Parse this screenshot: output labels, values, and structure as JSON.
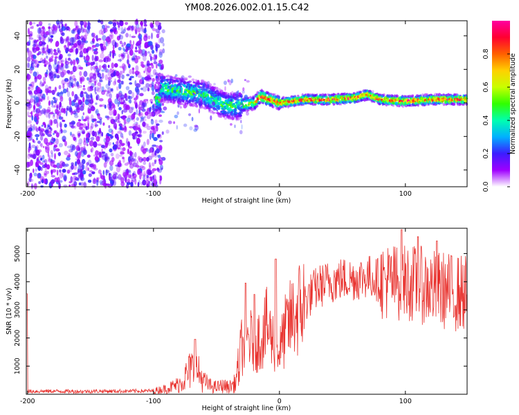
{
  "title": "YM08.2026.002.01.15.C42",
  "colors": {
    "snr_line": "#e8302c",
    "axis": "#000000",
    "colormap": [
      "#ffffff",
      "#9f00ff",
      "#3c1cff",
      "#00b0ff",
      "#00ffb0",
      "#30ff00",
      "#c8ff00",
      "#ffd000",
      "#ff6000",
      "#ff0030",
      "#ff00a0"
    ]
  },
  "chart_data": [
    {
      "type": "heatmap",
      "title": "YM08.2026.002.01.15.C42",
      "xlabel": "Height of straight line (km)",
      "ylabel": "Frequency (Hz)",
      "xlim": [
        -201,
        149
      ],
      "ylim": [
        -50,
        49
      ],
      "xticks": [
        -200,
        -100,
        0,
        100
      ],
      "xtick_labels": [
        "-200",
        "-100",
        "0",
        "100"
      ],
      "yticks": [
        -40,
        -20,
        0,
        20,
        40
      ],
      "ytick_labels": [
        "-40",
        "-20",
        "0",
        "20",
        "40"
      ],
      "colorbar": {
        "label": "Normalized spectral amplitude",
        "range": [
          0,
          1
        ],
        "ticks": [
          0,
          0.2,
          0.4,
          0.6,
          0.8
        ],
        "tick_labels": [
          "0.0",
          "0.2",
          "0.4",
          "0.6",
          "0.8"
        ]
      },
      "description_points": {
        "noise_region_x": [
          -200,
          -92
        ],
        "ridge_x": [
          -95,
          -60,
          -45,
          -35,
          -20,
          -15,
          0,
          20,
          40,
          60,
          70,
          80,
          100,
          120,
          149
        ],
        "ridge_y": [
          9,
          5,
          -1,
          -2,
          0,
          4,
          0,
          2,
          2,
          3,
          5,
          2,
          1,
          2,
          2
        ]
      }
    },
    {
      "type": "line",
      "xlabel": "Height of straight line (km)",
      "ylabel": "SNR (10 * v/v)",
      "xlim": [
        -201,
        149
      ],
      "ylim": [
        0,
        5900
      ],
      "xticks": [
        -200,
        -100,
        0,
        100
      ],
      "xtick_labels": [
        "-200",
        "-100",
        "0",
        "100"
      ],
      "yticks": [
        1000,
        2000,
        3000,
        4000,
        5000
      ],
      "ytick_labels": [
        "1000",
        "2000",
        "3000",
        "4000",
        "5000"
      ],
      "series": [
        {
          "name": "SNR",
          "x": [
            -200,
            -180,
            -160,
            -140,
            -120,
            -100,
            -90,
            -80,
            -75,
            -70,
            -65,
            -60,
            -55,
            -50,
            -45,
            -40,
            -35,
            -30,
            -25,
            -20,
            -15,
            -10,
            -5,
            0,
            5,
            10,
            20,
            30,
            40,
            50,
            60,
            70,
            80,
            90,
            100,
            110,
            120,
            130,
            140,
            149
          ],
          "values": [
            100,
            110,
            100,
            110,
            110,
            120,
            200,
            350,
            600,
            900,
            800,
            450,
            300,
            250,
            300,
            250,
            400,
            1500,
            2000,
            1800,
            2000,
            2400,
            1900,
            1500,
            2300,
            2700,
            3300,
            3800,
            4000,
            4100,
            4100,
            4200,
            4050,
            4000,
            4000,
            3900,
            3800,
            3700,
            3600,
            3600
          ]
        }
      ],
      "spikes": [
        {
          "x": -67,
          "y": 1950
        },
        {
          "x": -27,
          "y": 3950
        },
        {
          "x": -20,
          "y": 3550
        },
        {
          "x": -3,
          "y": 4800
        },
        {
          "x": 97,
          "y": 5850
        },
        {
          "x": 110,
          "y": 5600
        },
        {
          "x": 125,
          "y": 5450
        }
      ]
    }
  ]
}
